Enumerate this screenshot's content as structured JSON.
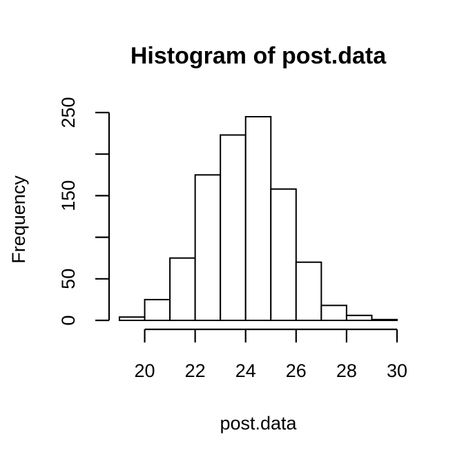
{
  "chart_data": {
    "type": "bar",
    "title": "Histogram of post.data",
    "xlabel": "post.data",
    "ylabel": "Frequency",
    "bins": [
      {
        "start": 19,
        "end": 20,
        "count": 4
      },
      {
        "start": 20,
        "end": 21,
        "count": 25
      },
      {
        "start": 21,
        "end": 22,
        "count": 75
      },
      {
        "start": 22,
        "end": 23,
        "count": 175
      },
      {
        "start": 23,
        "end": 24,
        "count": 223
      },
      {
        "start": 24,
        "end": 25,
        "count": 245
      },
      {
        "start": 25,
        "end": 26,
        "count": 158
      },
      {
        "start": 26,
        "end": 27,
        "count": 70
      },
      {
        "start": 27,
        "end": 28,
        "count": 18
      },
      {
        "start": 28,
        "end": 29,
        "count": 6
      },
      {
        "start": 29,
        "end": 30,
        "count": 1
      }
    ],
    "xlim": [
      19,
      30
    ],
    "ylim": [
      0,
      250
    ],
    "xticks": [
      20,
      22,
      24,
      26,
      28,
      30
    ],
    "yticks": [
      0,
      50,
      100,
      150,
      200,
      250
    ],
    "yticklabels": [
      "0",
      "50",
      "",
      "150",
      "",
      "250"
    ],
    "xticklabels": [
      "20",
      "22",
      "24",
      "26",
      "28",
      "30"
    ],
    "grid": false,
    "legend": "none",
    "colors": {
      "bar_fill": "#ffffff",
      "bar_stroke": "#000000",
      "text": "#000000"
    }
  }
}
